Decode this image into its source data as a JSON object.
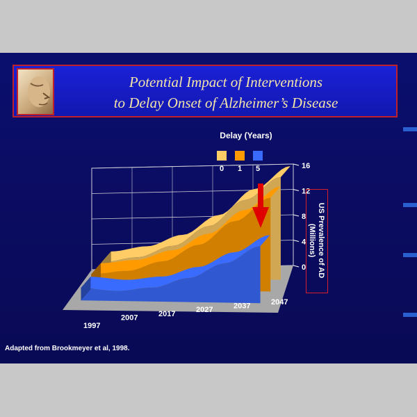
{
  "title_line1": "Potential Impact of Interventions",
  "title_line2": "to Delay Onset of Alzheimer’s Disease",
  "footnote": "Adapted from Brookmeyer et al, 1998.",
  "colors": {
    "delay_0": "#ffcc66",
    "delay_1": "#ff9b00",
    "delay_5": "#3a6bff",
    "floor": "#a8a8a8",
    "arrow": "#e00000"
  },
  "chart_data": {
    "type": "area",
    "legend_title": "Delay (Years)",
    "legend_placement": "top",
    "ylabel": "US Prevalence of AD\n(Millions)",
    "x": [
      "1997",
      "2007",
      "2017",
      "2027",
      "2037",
      "2047"
    ],
    "ylim": [
      0,
      16
    ],
    "yticks": [
      "0",
      "4",
      "8",
      "12",
      "16"
    ],
    "grid": true,
    "series": [
      {
        "name": "0",
        "values": [
          2.3,
          3.2,
          5.1,
          8.3,
          12.5,
          16.2
        ]
      },
      {
        "name": "1",
        "values": [
          2.3,
          2.9,
          4.5,
          7.2,
          11.0,
          14.8
        ]
      },
      {
        "name": "5",
        "values": [
          2.0,
          1.6,
          2.2,
          3.8,
          6.2,
          9.0
        ]
      }
    ]
  }
}
